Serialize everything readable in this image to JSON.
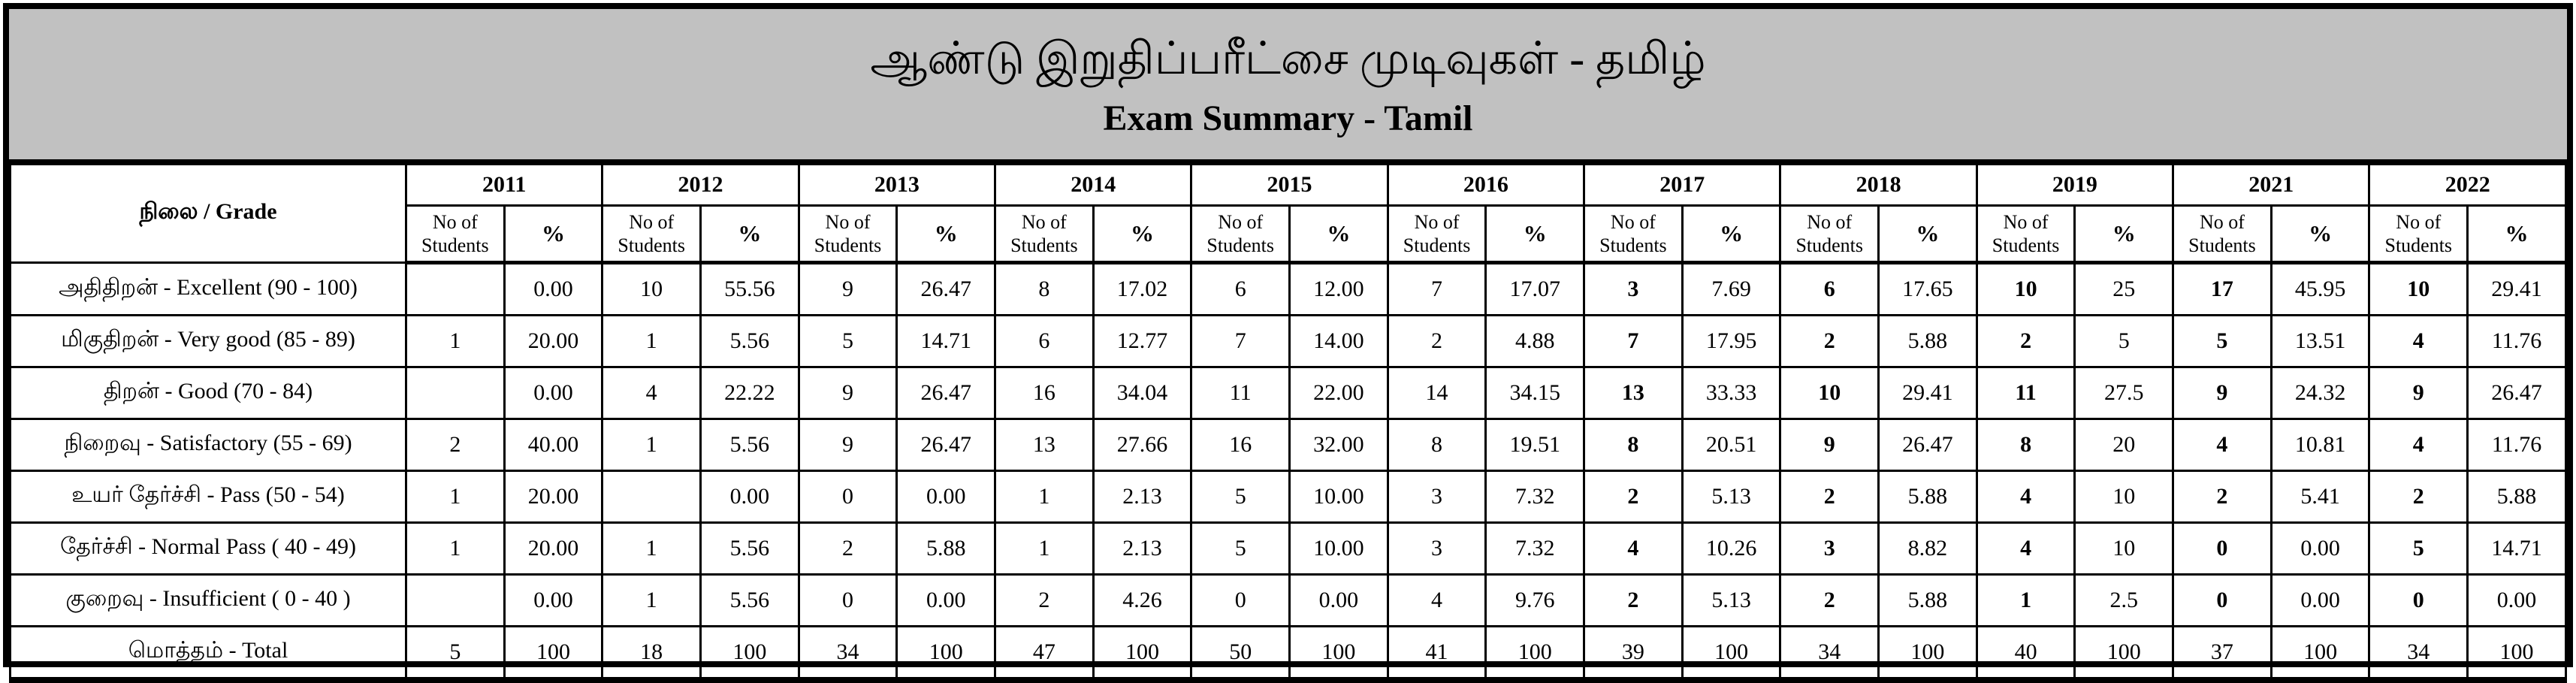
{
  "header": {
    "title_tamil": "ஆண்டு இறுதிப்பரீட்சை முடிவுகள் - தமிழ்",
    "title_english": "Exam Summary - Tamil"
  },
  "table": {
    "grade_header": "நிலை / Grade",
    "sub_headers": {
      "students": "No of Students",
      "percent": "%"
    },
    "years": [
      "2011",
      "2012",
      "2013",
      "2014",
      "2015",
      "2016",
      "2017",
      "2018",
      "2019",
      "2021",
      "2022"
    ],
    "bold_no_years": [
      "2017",
      "2018",
      "2019",
      "2021",
      "2022"
    ],
    "rows": [
      {
        "label": "அதிதிறன் - Excellent  (90 - 100)",
        "is_total": false,
        "values": [
          "",
          "0.00",
          "10",
          "55.56",
          "9",
          "26.47",
          "8",
          "17.02",
          "6",
          "12.00",
          "7",
          "17.07",
          "3",
          "7.69",
          "6",
          "17.65",
          "10",
          "25",
          "17",
          "45.95",
          "10",
          "29.41"
        ]
      },
      {
        "label": "மிகுதிறன் - Very good (85 - 89)",
        "is_total": false,
        "values": [
          "1",
          "20.00",
          "1",
          "5.56",
          "5",
          "14.71",
          "6",
          "12.77",
          "7",
          "14.00",
          "2",
          "4.88",
          "7",
          "17.95",
          "2",
          "5.88",
          "2",
          "5",
          "5",
          "13.51",
          "4",
          "11.76"
        ]
      },
      {
        "label": "திறன் - Good (70 - 84)",
        "is_total": false,
        "values": [
          "",
          "0.00",
          "4",
          "22.22",
          "9",
          "26.47",
          "16",
          "34.04",
          "11",
          "22.00",
          "14",
          "34.15",
          "13",
          "33.33",
          "10",
          "29.41",
          "11",
          "27.5",
          "9",
          "24.32",
          "9",
          "26.47"
        ]
      },
      {
        "label": "நிறைவு -  Satisfactory (55 - 69)",
        "is_total": false,
        "values": [
          "2",
          "40.00",
          "1",
          "5.56",
          "9",
          "26.47",
          "13",
          "27.66",
          "16",
          "32.00",
          "8",
          "19.51",
          "8",
          "20.51",
          "9",
          "26.47",
          "8",
          "20",
          "4",
          "10.81",
          "4",
          "11.76"
        ]
      },
      {
        "label": "உயர் தேர்ச்சி -  Pass (50 - 54)",
        "is_total": false,
        "values": [
          "1",
          "20.00",
          "",
          "0.00",
          "0",
          "0.00",
          "1",
          "2.13",
          "5",
          "10.00",
          "3",
          "7.32",
          "2",
          "5.13",
          "2",
          "5.88",
          "4",
          "10",
          "2",
          "5.41",
          "2",
          "5.88"
        ]
      },
      {
        "label": "தேர்ச்சி - Normal Pass ( 40 - 49)",
        "is_total": false,
        "values": [
          "1",
          "20.00",
          "1",
          "5.56",
          "2",
          "5.88",
          "1",
          "2.13",
          "5",
          "10.00",
          "3",
          "7.32",
          "4",
          "10.26",
          "3",
          "8.82",
          "4",
          "10",
          "0",
          "0.00",
          "5",
          "14.71"
        ]
      },
      {
        "label": "குறைவு -  Insufficient ( 0 -  40 )",
        "is_total": false,
        "values": [
          "",
          "0.00",
          "1",
          "5.56",
          "0",
          "0.00",
          "2",
          "4.26",
          "0",
          "0.00",
          "4",
          "9.76",
          "2",
          "5.13",
          "2",
          "5.88",
          "1",
          "2.5",
          "0",
          "0.00",
          "0",
          "0.00"
        ]
      },
      {
        "label": "மொத்தம் - Total",
        "is_total": true,
        "values": [
          "5",
          "100",
          "18",
          "100",
          "34",
          "100",
          "47",
          "100",
          "50",
          "100",
          "41",
          "100",
          "39",
          "100",
          "34",
          "100",
          "40",
          "100",
          "37",
          "100",
          "34",
          "100"
        ]
      }
    ]
  }
}
